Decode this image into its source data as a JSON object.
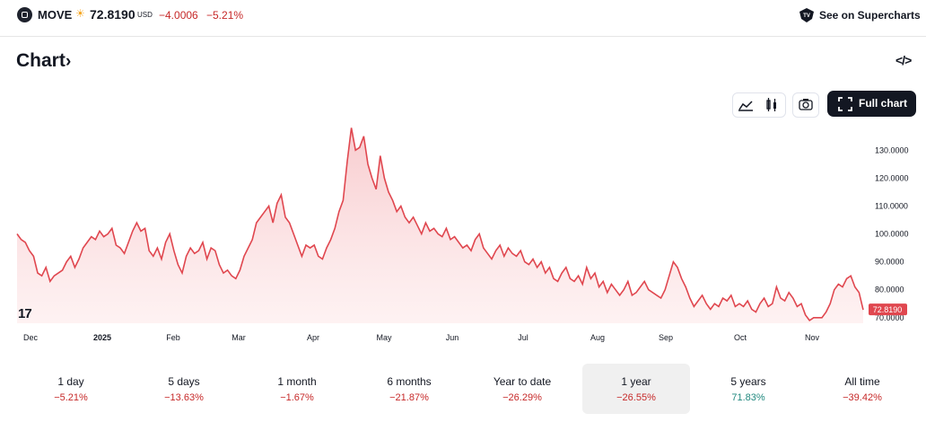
{
  "header": {
    "symbol": "MOVE",
    "price": "72.8190",
    "currency": "USD",
    "change": "−4.0006",
    "change_percent": "−5.21%",
    "see_link": "See on Supercharts",
    "sun_icon": "sun-icon",
    "logo_icon": "symbol-logo-icon"
  },
  "title": "Chart",
  "toolbar": {
    "full_chart_label": "Full chart",
    "icons": [
      "area-chart-icon",
      "candles-icon",
      "camera-icon",
      "fullscreen-icon",
      "embed-code-icon"
    ]
  },
  "chart_data": {
    "type": "area",
    "title": "",
    "xlabel": "",
    "ylabel": "",
    "ylim": [
      68,
      142
    ],
    "x_tick_labels": [
      "Dec",
      "2025",
      "Feb",
      "Mar",
      "Apr",
      "May",
      "Jun",
      "Jul",
      "Aug",
      "Sep",
      "Oct",
      "Nov"
    ],
    "y_tick_labels": [
      "70.0000",
      "80.0000",
      "90.0000",
      "100.0000",
      "110.0000",
      "120.0000",
      "130.0000"
    ],
    "y_ticks": [
      70,
      80,
      90,
      100,
      110,
      120,
      130
    ],
    "last_value_label": "72.8190",
    "line_color": "#e0474f",
    "fill_color": "#fadadc",
    "series": [
      {
        "values": [
          100,
          98,
          97,
          94,
          92,
          86,
          85,
          88,
          83,
          85,
          86,
          87,
          90,
          92,
          88,
          91,
          95,
          97,
          99,
          98,
          101,
          99,
          100,
          102,
          96,
          95,
          93,
          97,
          101,
          104,
          101,
          102,
          94,
          92,
          95,
          91,
          97,
          100,
          94,
          89,
          86,
          92,
          95,
          93,
          94,
          97,
          91,
          95,
          94,
          89,
          86,
          87,
          85,
          84,
          87,
          92,
          95,
          98,
          104,
          106,
          108,
          110,
          104,
          111,
          114,
          106,
          104,
          100,
          96,
          92,
          96,
          95,
          96,
          92,
          91,
          95,
          98,
          102,
          108,
          112,
          126,
          138,
          130,
          131,
          135,
          125,
          120,
          116,
          128,
          120,
          115,
          112,
          108,
          110,
          106,
          104,
          106,
          103,
          100,
          104,
          101,
          102,
          100,
          99,
          102,
          98,
          99,
          97,
          95,
          96,
          94,
          98,
          100,
          95,
          93,
          91,
          94,
          96,
          92,
          95,
          93,
          92,
          94,
          90,
          89,
          91,
          88,
          90,
          86,
          88,
          84,
          83,
          86,
          88,
          84,
          83,
          85,
          82,
          88,
          84,
          86,
          81,
          83,
          79,
          82,
          80,
          78,
          80,
          83,
          78,
          79,
          81,
          83,
          80,
          79,
          78,
          77,
          80,
          85,
          90,
          88,
          84,
          81,
          77,
          74,
          76,
          78,
          75,
          73,
          75,
          74,
          77,
          76,
          78,
          74,
          75,
          74,
          76,
          73,
          72,
          75,
          77,
          74,
          75,
          81,
          77,
          76,
          79,
          77,
          74,
          75,
          71,
          69,
          70,
          70,
          70,
          72,
          75,
          80,
          82,
          81,
          84,
          85,
          81,
          79,
          72.8
        ]
      }
    ]
  },
  "ranges": [
    {
      "label": "1 day",
      "value": "−5.21%",
      "positive": false,
      "selected": false
    },
    {
      "label": "5 days",
      "value": "−13.63%",
      "positive": false,
      "selected": false
    },
    {
      "label": "1 month",
      "value": "−1.67%",
      "positive": false,
      "selected": false
    },
    {
      "label": "6 months",
      "value": "−21.87%",
      "positive": false,
      "selected": false
    },
    {
      "label": "Year to date",
      "value": "−26.29%",
      "positive": false,
      "selected": false
    },
    {
      "label": "1 year",
      "value": "−26.55%",
      "positive": false,
      "selected": true
    },
    {
      "label": "5 years",
      "value": "71.83%",
      "positive": true,
      "selected": false
    },
    {
      "label": "All time",
      "value": "−39.42%",
      "positive": false,
      "selected": false
    }
  ]
}
